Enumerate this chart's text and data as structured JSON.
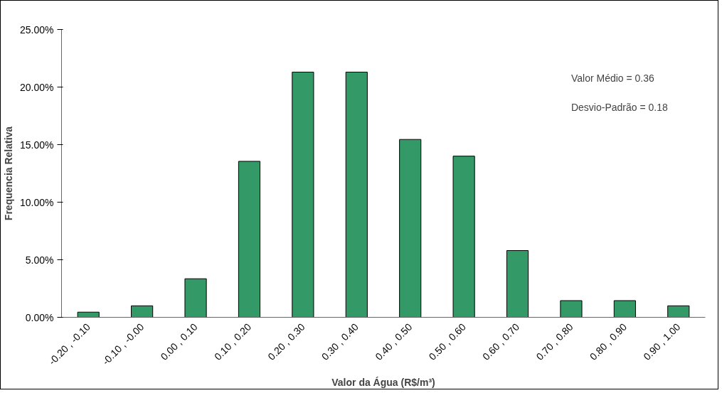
{
  "chart_data": {
    "type": "bar",
    "xlabel": "Valor da Água (R$/m³)",
    "ylabel": "Frequencia Relativa",
    "categories": [
      "-0.20 , -0.10",
      "-0.10 , -0.00",
      "0.00 , 0.10",
      "0.10 , 0.20",
      "0.20 , 0.30",
      "0.30 , 0.40",
      "0.40 , 0.50",
      "0.50 , 0.60",
      "0.60 , 0.70",
      "0.70 , 0.80",
      "0.80 , 0.90",
      "0.90 , 1.00"
    ],
    "values": [
      0.45,
      1.0,
      3.35,
      13.55,
      21.3,
      21.3,
      15.45,
      14.0,
      5.8,
      1.45,
      1.45,
      1.0
    ],
    "color": "#339966",
    "ylim": [
      0,
      25
    ],
    "yticks": [
      {
        "value": 0,
        "label": "0.00%"
      },
      {
        "value": 5,
        "label": "5.00%"
      },
      {
        "value": 10,
        "label": "10.00%"
      },
      {
        "value": 15,
        "label": "15.00%"
      },
      {
        "value": 20,
        "label": "20.00%"
      },
      {
        "value": 25,
        "label": "25.00%"
      }
    ],
    "annotations": [
      "Valor Médio = 0.36",
      "Desvio-Padrão = 0.18"
    ],
    "grid": false
  }
}
